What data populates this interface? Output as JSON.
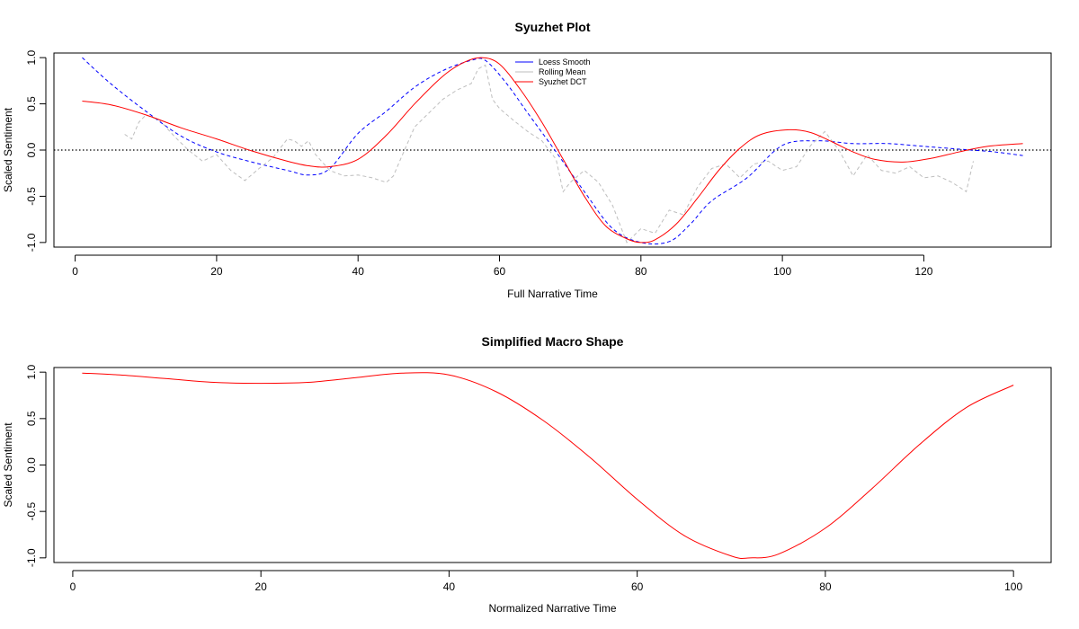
{
  "chart_data": [
    {
      "type": "line",
      "title": "Syuzhet Plot",
      "xlabel": "Full Narrative Time",
      "ylabel": "Scaled Sentiment",
      "xlim": [
        -3,
        138
      ],
      "ylim": [
        -1.05,
        1.05
      ],
      "xticks": [
        0,
        20,
        40,
        60,
        80,
        100,
        120
      ],
      "xtick_labels": [
        "0",
        "20",
        "40",
        "60",
        "80",
        "100",
        "120"
      ],
      "yticks": [
        -1.0,
        -0.5,
        0.0,
        0.5,
        1.0
      ],
      "ytick_labels": [
        "-1.0",
        "-0.5",
        "0.0",
        "0.5",
        "1.0"
      ],
      "hline": {
        "y": 0,
        "style": "dotted",
        "color": "#000000"
      },
      "legend": {
        "position": "top-center",
        "entries": [
          "Loess Smooth",
          "Rolling Mean",
          "Syuzhet DCT"
        ]
      },
      "series": [
        {
          "name": "Loess Smooth",
          "color": "#0000ff",
          "style": "dashed",
          "x": [
            1,
            5,
            10,
            15,
            20,
            25,
            30,
            33,
            36,
            40,
            44,
            48,
            52,
            56,
            58,
            61,
            64,
            68,
            72,
            76,
            80,
            84,
            87,
            90,
            95,
            100,
            105,
            110,
            115,
            120,
            125,
            130,
            134
          ],
          "y": [
            1.0,
            0.72,
            0.42,
            0.15,
            -0.02,
            -0.13,
            -0.22,
            -0.27,
            -0.2,
            0.18,
            0.42,
            0.68,
            0.86,
            0.97,
            0.97,
            0.72,
            0.4,
            -0.02,
            -0.45,
            -0.85,
            -1.0,
            -0.99,
            -0.8,
            -0.55,
            -0.3,
            0.05,
            0.1,
            0.07,
            0.07,
            0.04,
            0.01,
            -0.02,
            -0.06
          ]
        },
        {
          "name": "Rolling Mean",
          "color": "#bebebe",
          "style": "dashed",
          "x": [
            7,
            8,
            9,
            10,
            12,
            14,
            16,
            18,
            20,
            22,
            24,
            26,
            28,
            30,
            31,
            32,
            33,
            34,
            36,
            38,
            40,
            42,
            44,
            45,
            46,
            48,
            50,
            52,
            54,
            56,
            57,
            58,
            59,
            60,
            62,
            64,
            66,
            68,
            69,
            70,
            72,
            74,
            76,
            78,
            80,
            82,
            84,
            86,
            88,
            90,
            92,
            94,
            96,
            98,
            100,
            102,
            104,
            106,
            108,
            110,
            112,
            114,
            116,
            118,
            120,
            122,
            124,
            126,
            127
          ],
          "y": [
            0.17,
            0.12,
            0.3,
            0.38,
            0.32,
            0.15,
            0.0,
            -0.12,
            -0.05,
            -0.22,
            -0.33,
            -0.2,
            -0.08,
            0.12,
            0.1,
            0.04,
            0.1,
            -0.05,
            -0.22,
            -0.28,
            -0.27,
            -0.3,
            -0.35,
            -0.28,
            -0.1,
            0.25,
            0.4,
            0.55,
            0.65,
            0.72,
            0.88,
            0.92,
            0.55,
            0.45,
            0.32,
            0.2,
            0.1,
            -0.1,
            -0.45,
            -0.35,
            -0.22,
            -0.35,
            -0.6,
            -1.0,
            -0.85,
            -0.9,
            -0.65,
            -0.7,
            -0.4,
            -0.2,
            -0.15,
            -0.3,
            -0.15,
            -0.12,
            -0.22,
            -0.18,
            0.05,
            0.2,
            0.0,
            -0.28,
            -0.05,
            -0.22,
            -0.25,
            -0.18,
            -0.3,
            -0.28,
            -0.35,
            -0.45,
            -0.12
          ]
        },
        {
          "name": "Syuzhet DCT",
          "color": "#ff0000",
          "style": "solid",
          "x": [
            1,
            5,
            10,
            15,
            20,
            25,
            30,
            33,
            36,
            40,
            44,
            48,
            52,
            55,
            57.5,
            60,
            63,
            66,
            69,
            72,
            75,
            78,
            80,
            82,
            85,
            88,
            91,
            94,
            97,
            101,
            104,
            107,
            110,
            113,
            117,
            121,
            125,
            129,
            134
          ],
          "y": [
            0.53,
            0.49,
            0.38,
            0.24,
            0.12,
            -0.01,
            -0.12,
            -0.17,
            -0.18,
            -0.1,
            0.16,
            0.5,
            0.8,
            0.95,
            1.0,
            0.93,
            0.65,
            0.3,
            -0.1,
            -0.5,
            -0.82,
            -0.96,
            -1.0,
            -0.97,
            -0.8,
            -0.52,
            -0.22,
            0.02,
            0.17,
            0.22,
            0.19,
            0.09,
            -0.02,
            -0.1,
            -0.13,
            -0.09,
            -0.02,
            0.04,
            0.07
          ]
        }
      ]
    },
    {
      "type": "line",
      "title": "Simplified Macro Shape",
      "xlabel": "Normalized Narrative Time",
      "ylabel": "Scaled Sentiment",
      "xlim": [
        -2,
        104
      ],
      "ylim": [
        -1.05,
        1.05
      ],
      "xticks": [
        0,
        20,
        40,
        60,
        80,
        100
      ],
      "xtick_labels": [
        "0",
        "20",
        "40",
        "60",
        "80",
        "100"
      ],
      "yticks": [
        -1.0,
        -0.5,
        0.0,
        0.5,
        1.0
      ],
      "ytick_labels": [
        "-1.0",
        "-0.5",
        "0.0",
        "0.5",
        "1.0"
      ],
      "series": [
        {
          "color": "#ff0000",
          "style": "solid",
          "x": [
            1,
            5,
            10,
            15,
            20,
            25,
            30,
            35,
            40,
            45,
            50,
            55,
            60,
            65,
            70,
            72,
            75,
            80,
            85,
            90,
            95,
            100
          ],
          "y": [
            0.99,
            0.97,
            0.93,
            0.89,
            0.88,
            0.89,
            0.94,
            0.99,
            0.97,
            0.79,
            0.48,
            0.08,
            -0.37,
            -0.76,
            -0.98,
            -1.0,
            -0.96,
            -0.68,
            -0.25,
            0.22,
            0.62,
            0.86
          ]
        }
      ]
    }
  ]
}
